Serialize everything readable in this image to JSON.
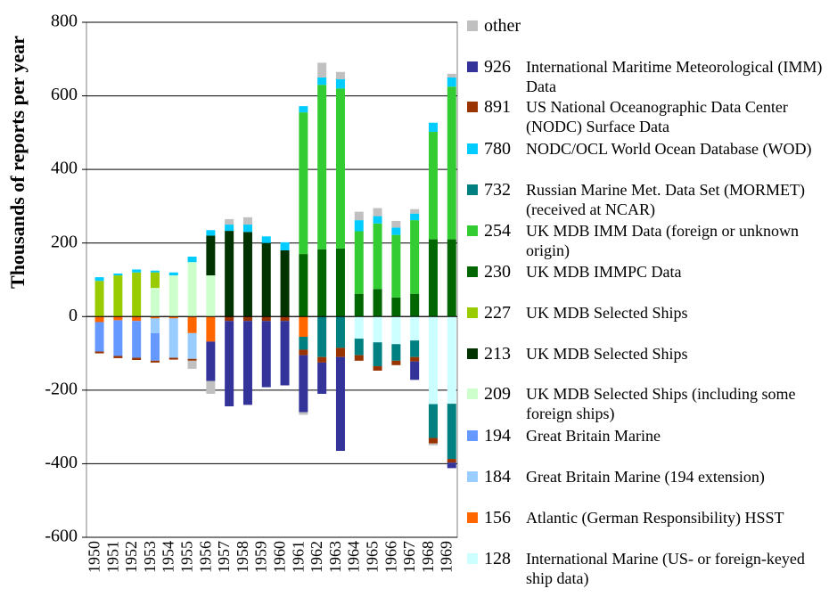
{
  "chart_data": {
    "type": "bar",
    "stacked": true,
    "y_label": "Thousands of reports per year",
    "categories": [
      "1950",
      "1951",
      "1952",
      "1953",
      "1954",
      "1955",
      "1956",
      "1957",
      "1958",
      "1959",
      "1960",
      "1961",
      "1962",
      "1963",
      "1964",
      "1965",
      "1966",
      "1967",
      "1968",
      "1969"
    ],
    "ylim": [
      -600,
      800
    ],
    "yticks": [
      -600,
      -400,
      -200,
      0,
      200,
      400,
      600,
      800
    ],
    "grid": true,
    "series": [
      {
        "code": "128",
        "name": "International Marine (US- or foreign-keyed ship data)",
        "color": "#ccffff",
        "values": [
          0,
          0,
          0,
          0,
          0,
          0,
          0,
          0,
          0,
          0,
          0,
          0,
          0,
          0,
          -60,
          -70,
          -75,
          -65,
          -238,
          -237
        ]
      },
      {
        "code": "156",
        "name": "Atlantic (German Responsibility) HSST",
        "color": "#ff6600",
        "values": [
          -15,
          -10,
          -12,
          -5,
          -5,
          -45,
          -68,
          0,
          0,
          0,
          0,
          -55,
          0,
          0,
          0,
          0,
          0,
          0,
          0,
          0
        ]
      },
      {
        "code": "184",
        "name": "Great Britain Marine (194 extension)",
        "color": "#99ccff",
        "values": [
          0,
          0,
          0,
          -40,
          -107,
          -70,
          0,
          0,
          0,
          0,
          0,
          0,
          0,
          0,
          0,
          0,
          0,
          0,
          0,
          0
        ]
      },
      {
        "code": "194",
        "name": "Great Britain Marine",
        "color": "#6699ff",
        "values": [
          -80,
          -97,
          -100,
          -75,
          0,
          0,
          0,
          0,
          0,
          0,
          0,
          0,
          0,
          0,
          0,
          0,
          0,
          0,
          0,
          0
        ]
      },
      {
        "code": "209",
        "name": "UK MDB Selected Ships (including some foreign ships)",
        "color": "#ccffcc",
        "values": [
          0,
          0,
          0,
          78,
          112,
          148,
          112,
          0,
          0,
          0,
          0,
          0,
          0,
          0,
          0,
          0,
          0,
          0,
          0,
          0
        ]
      },
      {
        "code": "213",
        "name": "UK MDB Selected Ships",
        "color": "#003300",
        "values": [
          0,
          0,
          0,
          0,
          0,
          0,
          108,
          233,
          230,
          200,
          180,
          0,
          0,
          0,
          0,
          0,
          0,
          0,
          0,
          0
        ]
      },
      {
        "code": "227",
        "name": "UK MDB Selected Ships",
        "color": "#99cc00",
        "values": [
          97,
          112,
          120,
          42,
          0,
          0,
          0,
          0,
          0,
          0,
          0,
          0,
          0,
          0,
          0,
          0,
          0,
          0,
          0,
          0
        ]
      },
      {
        "code": "230",
        "name": "UK MDB IMMPC Data",
        "color": "#006600",
        "values": [
          0,
          0,
          0,
          0,
          0,
          0,
          0,
          0,
          0,
          0,
          0,
          170,
          183,
          185,
          62,
          75,
          52,
          62,
          210,
          210
        ]
      },
      {
        "code": "254",
        "name": "UK MDB IMM Data (foreign or unknown origin)",
        "color": "#33cc33",
        "values": [
          0,
          0,
          0,
          0,
          0,
          0,
          0,
          0,
          0,
          0,
          0,
          385,
          447,
          435,
          170,
          178,
          170,
          200,
          292,
          415
        ]
      },
      {
        "code": "732",
        "name": "Russian Marine Met. Data Set (MORMET) (received at NCAR)",
        "color": "#008080",
        "values": [
          0,
          0,
          0,
          0,
          0,
          0,
          0,
          0,
          0,
          0,
          0,
          -35,
          -110,
          -85,
          -45,
          -65,
          -45,
          -45,
          -92,
          -150
        ]
      },
      {
        "code": "780",
        "name": "NODC/OCL World Ocean Database (WOD)",
        "color": "#00ccff",
        "values": [
          10,
          5,
          8,
          5,
          8,
          15,
          15,
          17,
          20,
          18,
          22,
          17,
          20,
          25,
          30,
          20,
          20,
          18,
          25,
          25
        ]
      },
      {
        "code": "891",
        "name": "US National Oceanographic Data Center (NODC) Surface Data",
        "color": "#993300",
        "values": [
          -5,
          -6,
          -6,
          -5,
          -5,
          -5,
          0,
          -12,
          -12,
          -12,
          -12,
          -15,
          -15,
          -25,
          -15,
          -12,
          -12,
          -12,
          -15,
          -10
        ]
      },
      {
        "code": "926",
        "name": "International Maritime Meteorological (IMM) Data",
        "color": "#333399",
        "values": [
          0,
          0,
          0,
          0,
          0,
          0,
          -107,
          -232,
          -228,
          -180,
          -175,
          -155,
          -85,
          -255,
          0,
          0,
          0,
          -50,
          0,
          -15
        ]
      },
      {
        "name": "other",
        "color": "#c0c0c0",
        "values": [
          0,
          0,
          0,
          0,
          0,
          -22,
          -35,
          15,
          20,
          0,
          0,
          -7,
          40,
          20,
          23,
          22,
          18,
          12,
          -5,
          10
        ]
      }
    ]
  }
}
